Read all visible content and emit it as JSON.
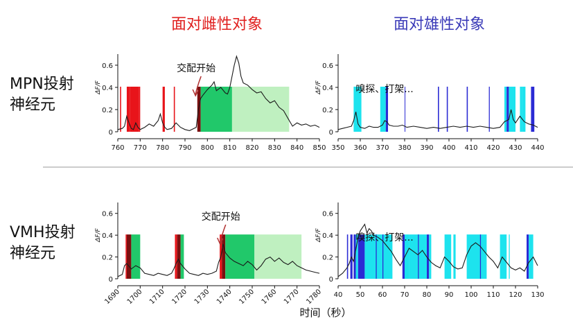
{
  "headers": {
    "female": "面对雌性对象",
    "male": "面对雄性对象"
  },
  "row_labels": [
    {
      "line1": "MPN投射",
      "line2": "神经元"
    },
    {
      "line1": "VMH投射",
      "line2": "神经元"
    }
  ],
  "xlabel": "时间（秒）",
  "ylabel": "ΔF/F",
  "colors": {
    "female_header": "#e0201f",
    "male_header": "#3a3ab8",
    "red": "#e8141a",
    "dark_red": "#7a1010",
    "green": "#21c86a",
    "light_green": "#bff0c0",
    "cyan": "#1de3ee",
    "blue": "#2b2bd4",
    "trace": "#1a1a1a"
  },
  "chart_data": [
    {
      "type": "line",
      "panel": "MPN-female",
      "annotation": "交配开始",
      "xlim": [
        760,
        850
      ],
      "ylim": [
        0,
        0.7
      ],
      "xticks": [
        760,
        770,
        780,
        790,
        800,
        810,
        820,
        830,
        840,
        850
      ],
      "yticks": [
        0,
        0.2,
        0.4,
        0.6
      ],
      "ytick_labels": [
        "0",
        "0.2",
        "0.4",
        "0.6"
      ],
      "arrow_x": 795,
      "bands": [
        {
          "x0": 761,
          "x1": 761.5,
          "kind": "red"
        },
        {
          "x0": 764,
          "x1": 765.5,
          "kind": "red"
        },
        {
          "x0": 765.5,
          "x1": 769.5,
          "kind": "red"
        },
        {
          "x0": 769.5,
          "x1": 770,
          "kind": "red"
        },
        {
          "x0": 780,
          "x1": 781,
          "kind": "red"
        },
        {
          "x0": 785,
          "x1": 785.5,
          "kind": "red"
        },
        {
          "x0": 795.5,
          "x1": 797,
          "kind": "dark_red"
        },
        {
          "x0": 797,
          "x1": 811,
          "kind": "green"
        },
        {
          "x0": 811,
          "x1": 836.5,
          "kind": "light_green"
        }
      ],
      "points": [
        [
          760,
          0.02
        ],
        [
          762,
          0.03
        ],
        [
          763,
          0.05
        ],
        [
          764,
          0.14
        ],
        [
          765,
          0.08
        ],
        [
          766,
          0.03
        ],
        [
          767,
          0.02
        ],
        [
          768,
          0.08
        ],
        [
          769,
          0.04
        ],
        [
          770,
          0.02
        ],
        [
          772,
          0.04
        ],
        [
          774,
          0.07
        ],
        [
          776,
          0.05
        ],
        [
          778,
          0.1
        ],
        [
          779,
          0.16
        ],
        [
          780,
          0.08
        ],
        [
          781,
          0.04
        ],
        [
          782,
          0.02
        ],
        [
          784,
          0.03
        ],
        [
          786,
          0.08
        ],
        [
          788,
          0.04
        ],
        [
          790,
          0.02
        ],
        [
          792,
          0.01
        ],
        [
          794,
          0.03
        ],
        [
          795,
          0.04
        ],
        [
          796,
          0.2
        ],
        [
          797,
          0.3
        ],
        [
          798,
          0.33
        ],
        [
          800,
          0.38
        ],
        [
          802,
          0.42
        ],
        [
          803,
          0.45
        ],
        [
          804,
          0.37
        ],
        [
          806,
          0.4
        ],
        [
          808,
          0.35
        ],
        [
          809,
          0.34
        ],
        [
          810,
          0.4
        ],
        [
          811,
          0.5
        ],
        [
          812,
          0.6
        ],
        [
          813,
          0.68
        ],
        [
          814,
          0.62
        ],
        [
          815,
          0.5
        ],
        [
          816,
          0.44
        ],
        [
          818,
          0.42
        ],
        [
          820,
          0.38
        ],
        [
          822,
          0.35
        ],
        [
          824,
          0.36
        ],
        [
          826,
          0.3
        ],
        [
          828,
          0.26
        ],
        [
          830,
          0.28
        ],
        [
          832,
          0.22
        ],
        [
          834,
          0.19
        ],
        [
          836,
          0.12
        ],
        [
          838,
          0.05
        ],
        [
          840,
          0.08
        ],
        [
          842,
          0.06
        ],
        [
          844,
          0.07
        ],
        [
          846,
          0.05
        ],
        [
          848,
          0.06
        ],
        [
          850,
          0.04
        ]
      ]
    },
    {
      "type": "line",
      "panel": "MPN-male",
      "annotation": "嗅探、打架...",
      "xlim": [
        350,
        440
      ],
      "ylim": [
        0,
        0.7
      ],
      "xticks": [
        350,
        360,
        370,
        380,
        390,
        400,
        410,
        420,
        430,
        440
      ],
      "yticks": [
        0,
        0.2,
        0.4,
        0.6
      ],
      "ytick_labels": [
        "0",
        "0.2",
        "0.4",
        "0.6"
      ],
      "bands": [
        {
          "x0": 357,
          "x1": 360.5,
          "kind": "cyan"
        },
        {
          "x0": 369,
          "x1": 371.5,
          "kind": "cyan"
        },
        {
          "x0": 371.5,
          "x1": 372.5,
          "kind": "blue"
        },
        {
          "x0": 380,
          "x1": 380.3,
          "kind": "blue"
        },
        {
          "x0": 395,
          "x1": 395.5,
          "kind": "blue"
        },
        {
          "x0": 399,
          "x1": 399.5,
          "kind": "blue"
        },
        {
          "x0": 408,
          "x1": 408.5,
          "kind": "blue"
        },
        {
          "x0": 418,
          "x1": 418.4,
          "kind": "blue"
        },
        {
          "x0": 425,
          "x1": 426,
          "kind": "cyan"
        },
        {
          "x0": 426,
          "x1": 427,
          "kind": "blue"
        },
        {
          "x0": 427,
          "x1": 430,
          "kind": "cyan"
        },
        {
          "x0": 432,
          "x1": 433,
          "kind": "cyan"
        },
        {
          "x0": 433,
          "x1": 434.5,
          "kind": "cyan"
        },
        {
          "x0": 437,
          "x1": 438.5,
          "kind": "blue"
        }
      ],
      "points": [
        [
          350,
          0.02
        ],
        [
          352,
          0.03
        ],
        [
          354,
          0.04
        ],
        [
          356,
          0.05
        ],
        [
          357,
          0.1
        ],
        [
          358,
          0.18
        ],
        [
          359,
          0.07
        ],
        [
          360,
          0.04
        ],
        [
          362,
          0.03
        ],
        [
          364,
          0.05
        ],
        [
          366,
          0.04
        ],
        [
          368,
          0.04
        ],
        [
          370,
          0.06
        ],
        [
          371,
          0.1
        ],
        [
          372,
          0.09
        ],
        [
          373,
          0.06
        ],
        [
          375,
          0.05
        ],
        [
          377,
          0.05
        ],
        [
          379,
          0.06
        ],
        [
          381,
          0.04
        ],
        [
          384,
          0.05
        ],
        [
          387,
          0.04
        ],
        [
          390,
          0.03
        ],
        [
          393,
          0.04
        ],
        [
          396,
          0.03
        ],
        [
          399,
          0.04
        ],
        [
          402,
          0.05
        ],
        [
          405,
          0.04
        ],
        [
          408,
          0.05
        ],
        [
          411,
          0.04
        ],
        [
          414,
          0.05
        ],
        [
          417,
          0.04
        ],
        [
          420,
          0.03
        ],
        [
          423,
          0.04
        ],
        [
          425,
          0.09
        ],
        [
          426,
          0.1
        ],
        [
          427,
          0.11
        ],
        [
          428,
          0.2
        ],
        [
          429,
          0.11
        ],
        [
          430,
          0.08
        ],
        [
          432,
          0.14
        ],
        [
          434,
          0.09
        ],
        [
          436,
          0.07
        ],
        [
          438,
          0.06
        ],
        [
          440,
          0.04
        ]
      ]
    },
    {
      "type": "line",
      "panel": "VMH-female",
      "annotation": "交配开始",
      "xlim": [
        1690,
        1780
      ],
      "ylim": [
        0,
        0.7
      ],
      "xticks": [
        1690,
        1700,
        1710,
        1720,
        1730,
        1740,
        1750,
        1760,
        1770,
        1780
      ],
      "yticks": [
        0,
        0.2,
        0.4,
        0.6
      ],
      "ytick_labels": [
        "0",
        "0.2",
        "0.4",
        "0.6"
      ],
      "arrow_x": 1736,
      "bands": [
        {
          "x0": 1693.5,
          "x1": 1694,
          "kind": "red"
        },
        {
          "x0": 1694,
          "x1": 1696,
          "kind": "dark_red"
        },
        {
          "x0": 1696,
          "x1": 1700,
          "kind": "green"
        },
        {
          "x0": 1715.5,
          "x1": 1716.5,
          "kind": "red"
        },
        {
          "x0": 1716.5,
          "x1": 1718,
          "kind": "dark_red"
        },
        {
          "x0": 1718,
          "x1": 1719.5,
          "kind": "green"
        },
        {
          "x0": 1735.5,
          "x1": 1736.5,
          "kind": "red"
        },
        {
          "x0": 1736.5,
          "x1": 1738,
          "kind": "dark_red"
        },
        {
          "x0": 1738,
          "x1": 1751,
          "kind": "green"
        },
        {
          "x0": 1751,
          "x1": 1772,
          "kind": "light_green"
        }
      ],
      "points": [
        [
          1690,
          0.02
        ],
        [
          1692,
          0.04
        ],
        [
          1693,
          0.12
        ],
        [
          1694,
          0.14
        ],
        [
          1696,
          0.09
        ],
        [
          1698,
          0.12
        ],
        [
          1700,
          0.1
        ],
        [
          1702,
          0.05
        ],
        [
          1704,
          0.04
        ],
        [
          1706,
          0.03
        ],
        [
          1708,
          0.05
        ],
        [
          1710,
          0.04
        ],
        [
          1712,
          0.03
        ],
        [
          1714,
          0.05
        ],
        [
          1715,
          0.09
        ],
        [
          1716,
          0.14
        ],
        [
          1717,
          0.18
        ],
        [
          1718,
          0.14
        ],
        [
          1720,
          0.09
        ],
        [
          1722,
          0.05
        ],
        [
          1724,
          0.04
        ],
        [
          1726,
          0.03
        ],
        [
          1728,
          0.05
        ],
        [
          1730,
          0.04
        ],
        [
          1732,
          0.05
        ],
        [
          1734,
          0.07
        ],
        [
          1735,
          0.15
        ],
        [
          1736,
          0.2
        ],
        [
          1737,
          0.32
        ],
        [
          1738,
          0.24
        ],
        [
          1740,
          0.19
        ],
        [
          1742,
          0.16
        ],
        [
          1744,
          0.14
        ],
        [
          1746,
          0.12
        ],
        [
          1748,
          0.16
        ],
        [
          1750,
          0.13
        ],
        [
          1752,
          0.08
        ],
        [
          1754,
          0.12
        ],
        [
          1756,
          0.18
        ],
        [
          1758,
          0.2
        ],
        [
          1760,
          0.16
        ],
        [
          1762,
          0.19
        ],
        [
          1764,
          0.15
        ],
        [
          1766,
          0.13
        ],
        [
          1768,
          0.16
        ],
        [
          1770,
          0.12
        ],
        [
          1772,
          0.1
        ],
        [
          1774,
          0.08
        ],
        [
          1776,
          0.07
        ],
        [
          1778,
          0.06
        ],
        [
          1780,
          0.05
        ]
      ]
    },
    {
      "type": "line",
      "panel": "VMH-male",
      "annotation": "嗅探、打架...",
      "xlim": [
        40,
        130
      ],
      "ylim": [
        0,
        0.7
      ],
      "xticks": [
        40,
        50,
        60,
        70,
        80,
        90,
        100,
        110,
        120,
        130
      ],
      "yticks": [
        0,
        0.2,
        0.4,
        0.6
      ],
      "ytick_labels": [
        "0",
        "0.2",
        "0.4",
        "0.6"
      ],
      "bands": [
        {
          "x0": 44,
          "x1": 44.5,
          "kind": "blue"
        },
        {
          "x0": 45.5,
          "x1": 46.5,
          "kind": "blue"
        },
        {
          "x0": 47,
          "x1": 48,
          "kind": "blue"
        },
        {
          "x0": 48,
          "x1": 49,
          "kind": "cyan"
        },
        {
          "x0": 49,
          "x1": 52,
          "kind": "blue"
        },
        {
          "x0": 52,
          "x1": 64.5,
          "kind": "cyan"
        },
        {
          "x0": 57,
          "x1": 57.4,
          "kind": "blue"
        },
        {
          "x0": 60,
          "x1": 60.4,
          "kind": "blue"
        },
        {
          "x0": 69,
          "x1": 70,
          "kind": "blue"
        },
        {
          "x0": 70,
          "x1": 72,
          "kind": "cyan"
        },
        {
          "x0": 72,
          "x1": 80,
          "kind": "cyan"
        },
        {
          "x0": 76,
          "x1": 76.4,
          "kind": "blue"
        },
        {
          "x0": 80,
          "x1": 81,
          "kind": "blue"
        },
        {
          "x0": 81,
          "x1": 82,
          "kind": "cyan"
        },
        {
          "x0": 88,
          "x1": 91,
          "kind": "cyan"
        },
        {
          "x0": 92,
          "x1": 93,
          "kind": "cyan"
        },
        {
          "x0": 98,
          "x1": 107,
          "kind": "cyan"
        },
        {
          "x0": 104,
          "x1": 104.4,
          "kind": "blue"
        },
        {
          "x0": 113,
          "x1": 116,
          "kind": "cyan"
        },
        {
          "x0": 117,
          "x1": 117.4,
          "kind": "cyan"
        },
        {
          "x0": 125,
          "x1": 126,
          "kind": "blue"
        },
        {
          "x0": 126,
          "x1": 128,
          "kind": "cyan"
        }
      ],
      "points": [
        [
          40,
          0.02
        ],
        [
          42,
          0.05
        ],
        [
          44,
          0.1
        ],
        [
          45,
          0.14
        ],
        [
          46,
          0.2
        ],
        [
          47,
          0.16
        ],
        [
          48,
          0.27
        ],
        [
          49,
          0.38
        ],
        [
          50,
          0.44
        ],
        [
          51,
          0.47
        ],
        [
          52,
          0.5
        ],
        [
          53,
          0.42
        ],
        [
          54,
          0.46
        ],
        [
          55,
          0.44
        ],
        [
          56,
          0.4
        ],
        [
          58,
          0.38
        ],
        [
          60,
          0.35
        ],
        [
          62,
          0.3
        ],
        [
          64,
          0.25
        ],
        [
          66,
          0.18
        ],
        [
          68,
          0.12
        ],
        [
          70,
          0.2
        ],
        [
          72,
          0.28
        ],
        [
          74,
          0.25
        ],
        [
          76,
          0.22
        ],
        [
          78,
          0.26
        ],
        [
          80,
          0.2
        ],
        [
          82,
          0.15
        ],
        [
          84,
          0.12
        ],
        [
          86,
          0.1
        ],
        [
          88,
          0.2
        ],
        [
          90,
          0.16
        ],
        [
          92,
          0.11
        ],
        [
          94,
          0.09
        ],
        [
          96,
          0.1
        ],
        [
          98,
          0.22
        ],
        [
          100,
          0.3
        ],
        [
          102,
          0.33
        ],
        [
          104,
          0.3
        ],
        [
          106,
          0.25
        ],
        [
          108,
          0.2
        ],
        [
          110,
          0.16
        ],
        [
          112,
          0.1
        ],
        [
          114,
          0.2
        ],
        [
          116,
          0.15
        ],
        [
          118,
          0.1
        ],
        [
          120,
          0.08
        ],
        [
          122,
          0.1
        ],
        [
          124,
          0.07
        ],
        [
          126,
          0.15
        ],
        [
          128,
          0.2
        ],
        [
          130,
          0.12
        ]
      ]
    }
  ]
}
